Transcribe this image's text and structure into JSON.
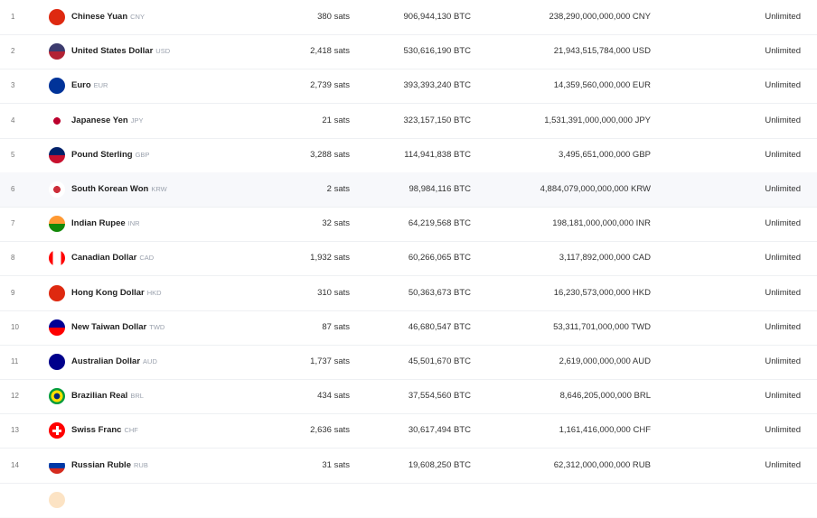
{
  "rows": [
    {
      "rank": "1",
      "name": "Chinese Yuan",
      "code": "CNY",
      "price": "380 sats",
      "btc": "906,944,130 BTC",
      "supply": "238,290,000,000,000 CNY",
      "limit": "Unlimited",
      "flag": [
        "#de2910",
        "#de2910"
      ]
    },
    {
      "rank": "2",
      "name": "United States Dollar",
      "code": "USD",
      "price": "2,418 sats",
      "btc": "530,616,190 BTC",
      "supply": "21,943,515,784,000 USD",
      "limit": "Unlimited",
      "flag": [
        "#3c3b6e",
        "#b22234"
      ]
    },
    {
      "rank": "3",
      "name": "Euro",
      "code": "EUR",
      "price": "2,739 sats",
      "btc": "393,393,240 BTC",
      "supply": "14,359,560,000,000 EUR",
      "limit": "Unlimited",
      "flag": [
        "#003399",
        "#003399"
      ]
    },
    {
      "rank": "4",
      "name": "Japanese Yen",
      "code": "JPY",
      "price": "21 sats",
      "btc": "323,157,150 BTC",
      "supply": "1,531,391,000,000,000 JPY",
      "limit": "Unlimited",
      "flag": [
        "#ffffff",
        "#bc002d"
      ]
    },
    {
      "rank": "5",
      "name": "Pound Sterling",
      "code": "GBP",
      "price": "3,288 sats",
      "btc": "114,941,838 BTC",
      "supply": "3,495,651,000,000 GBP",
      "limit": "Unlimited",
      "flag": [
        "#012169",
        "#c8102e"
      ]
    },
    {
      "rank": "6",
      "name": "South Korean Won",
      "code": "KRW",
      "price": "2 sats",
      "btc": "98,984,116 BTC",
      "supply": "4,884,079,000,000,000 KRW",
      "limit": "Unlimited",
      "flag": [
        "#ffffff",
        "#cd2e3a"
      ]
    },
    {
      "rank": "7",
      "name": "Indian Rupee",
      "code": "INR",
      "price": "32 sats",
      "btc": "64,219,568 BTC",
      "supply": "198,181,000,000,000 INR",
      "limit": "Unlimited",
      "flag": [
        "#ff9933",
        "#138808"
      ]
    },
    {
      "rank": "8",
      "name": "Canadian Dollar",
      "code": "CAD",
      "price": "1,932 sats",
      "btc": "60,266,065 BTC",
      "supply": "3,117,892,000,000 CAD",
      "limit": "Unlimited",
      "flag": [
        "#ff0000",
        "#ffffff"
      ]
    },
    {
      "rank": "9",
      "name": "Hong Kong Dollar",
      "code": "HKD",
      "price": "310 sats",
      "btc": "50,363,673 BTC",
      "supply": "16,230,573,000,000 HKD",
      "limit": "Unlimited",
      "flag": [
        "#de2910",
        "#de2910"
      ]
    },
    {
      "rank": "10",
      "name": "New Taiwan Dollar",
      "code": "TWD",
      "price": "87 sats",
      "btc": "46,680,547 BTC",
      "supply": "53,311,701,000,000 TWD",
      "limit": "Unlimited",
      "flag": [
        "#000095",
        "#fe0000"
      ]
    },
    {
      "rank": "11",
      "name": "Australian Dollar",
      "code": "AUD",
      "price": "1,737 sats",
      "btc": "45,501,670 BTC",
      "supply": "2,619,000,000,000 AUD",
      "limit": "Unlimited",
      "flag": [
        "#00008b",
        "#00008b"
      ]
    },
    {
      "rank": "12",
      "name": "Brazilian Real",
      "code": "BRL",
      "price": "434 sats",
      "btc": "37,554,560 BTC",
      "supply": "8,646,205,000,000 BRL",
      "limit": "Unlimited",
      "flag": [
        "#009c3b",
        "#ffdf00"
      ]
    },
    {
      "rank": "13",
      "name": "Swiss Franc",
      "code": "CHF",
      "price": "2,636 sats",
      "btc": "30,617,494 BTC",
      "supply": "1,161,416,000,000 CHF",
      "limit": "Unlimited",
      "flag": [
        "#ff0000",
        "#ff0000"
      ]
    },
    {
      "rank": "14",
      "name": "Russian Ruble",
      "code": "RUB",
      "price": "31 sats",
      "btc": "19,608,250 BTC",
      "supply": "62,312,000,000,000 RUB",
      "limit": "Unlimited",
      "flag": [
        "#ffffff",
        "#0039a6",
        "#d52b1e"
      ]
    }
  ],
  "highlighted_row": 6
}
